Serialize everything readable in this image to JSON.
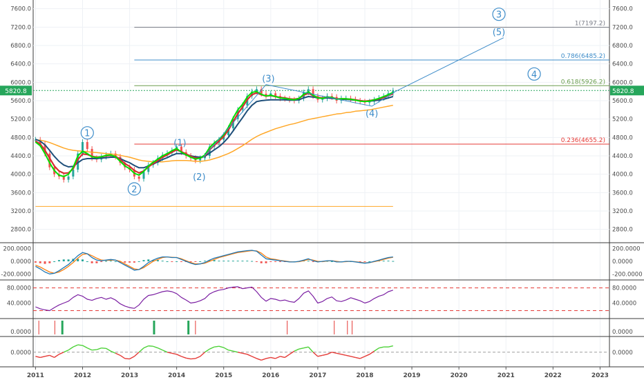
{
  "chart_data": {
    "type": "line",
    "instrument_price_label": "5820.8",
    "colors": {
      "up": "#26a69a",
      "down": "#ef5350",
      "ema_fast": "#00e000",
      "ema_mid": "#d32f2f",
      "ema_slow": "#1e4f7a",
      "ema_long": "#ffa726",
      "wave": "#3d8cc9",
      "price_badge": "#26a65b"
    },
    "x_axis": {
      "start": 2010.95,
      "end": 2023.2,
      "ticks": [
        "2011",
        "2012",
        "2013",
        "2014",
        "2015",
        "2016",
        "2017",
        "2018",
        "2019",
        "2020",
        "2021",
        "2022",
        "2023"
      ]
    },
    "main_panel": {
      "ylim": [
        2600,
        7700
      ],
      "y_ticks": [
        "7600.0",
        "7200.0",
        "6800.0",
        "6400.0",
        "6000.0",
        "5600.0",
        "5200.0",
        "4800.0",
        "4400.0",
        "4000.0",
        "3600.0",
        "3200.0",
        "2800.0"
      ],
      "price": {
        "x": [
          2011.0,
          2011.1,
          2011.2,
          2011.3,
          2011.4,
          2011.5,
          2011.6,
          2011.7,
          2011.8,
          2011.9,
          2012.0,
          2012.1,
          2012.2,
          2012.3,
          2012.4,
          2012.5,
          2012.6,
          2012.7,
          2012.8,
          2012.9,
          2013.0,
          2013.1,
          2013.2,
          2013.3,
          2013.4,
          2013.5,
          2013.6,
          2013.7,
          2013.8,
          2013.9,
          2014.0,
          2014.1,
          2014.2,
          2014.3,
          2014.4,
          2014.5,
          2014.6,
          2014.7,
          2014.8,
          2014.9,
          2015.0,
          2015.1,
          2015.2,
          2015.3,
          2015.4,
          2015.5,
          2015.6,
          2015.7,
          2015.8,
          2015.9,
          2016.0,
          2016.1,
          2016.2,
          2016.3,
          2016.4,
          2016.5,
          2016.6,
          2016.7,
          2016.8,
          2016.9,
          2017.0,
          2017.1,
          2017.2,
          2017.3,
          2017.4,
          2017.5,
          2017.6,
          2017.7,
          2017.8,
          2017.9,
          2018.0,
          2018.1,
          2018.2,
          2018.3,
          2018.4,
          2018.5,
          2018.6
        ],
        "y": [
          4750,
          4650,
          4450,
          4150,
          4000,
          3950,
          3880,
          3950,
          4100,
          4450,
          4700,
          4550,
          4350,
          4320,
          4380,
          4420,
          4450,
          4380,
          4250,
          4150,
          4100,
          3950,
          3900,
          4050,
          4200,
          4250,
          4350,
          4420,
          4460,
          4520,
          4600,
          4480,
          4400,
          4350,
          4300,
          4350,
          4400,
          4600,
          4680,
          4750,
          4850,
          5000,
          5200,
          5400,
          5500,
          5700,
          5800,
          5850,
          5750,
          5700,
          5760,
          5700,
          5650,
          5640,
          5620,
          5600,
          5650,
          5780,
          5850,
          5700,
          5620,
          5650,
          5700,
          5680,
          5600,
          5650,
          5650,
          5630,
          5600,
          5580,
          5560,
          5580,
          5620,
          5660,
          5700,
          5760,
          5820.8
        ]
      },
      "ema_fast": [
        4700,
        4620,
        4450,
        4250,
        4080,
        3980,
        3950,
        4000,
        4150,
        4400,
        4500,
        4450,
        4380,
        4360,
        4380,
        4410,
        4420,
        4380,
        4280,
        4180,
        4120,
        4020,
        3980,
        4060,
        4180,
        4260,
        4330,
        4400,
        4450,
        4510,
        4560,
        4480,
        4420,
        4370,
        4330,
        4350,
        4420,
        4580,
        4680,
        4760,
        4860,
        5020,
        5220,
        5400,
        5520,
        5680,
        5780,
        5800,
        5740,
        5700,
        5720,
        5690,
        5660,
        5650,
        5630,
        5620,
        5650,
        5740,
        5790,
        5720,
        5660,
        5650,
        5680,
        5670,
        5630,
        5640,
        5640,
        5630,
        5610,
        5590,
        5580,
        5590,
        5620,
        5650,
        5690,
        5730,
        5780
      ],
      "ema_mid": [
        4720,
        4660,
        4520,
        4350,
        4180,
        4070,
        4020,
        4030,
        4120,
        4320,
        4440,
        4430,
        4390,
        4370,
        4380,
        4400,
        4410,
        4390,
        4320,
        4230,
        4170,
        4080,
        4030,
        4070,
        4160,
        4230,
        4300,
        4370,
        4420,
        4480,
        4530,
        4490,
        4440,
        4390,
        4350,
        4350,
        4400,
        4530,
        4630,
        4720,
        4820,
        4960,
        5140,
        5320,
        5460,
        5620,
        5730,
        5770,
        5730,
        5700,
        5710,
        5690,
        5670,
        5660,
        5640,
        5630,
        5650,
        5720,
        5760,
        5710,
        5670,
        5660,
        5680,
        5670,
        5640,
        5640,
        5640,
        5630,
        5620,
        5600,
        5590,
        5600,
        5620,
        5640,
        5670,
        5710,
        5750
      ],
      "ema_slow": [
        4760,
        4720,
        4640,
        4520,
        4390,
        4280,
        4200,
        4160,
        4170,
        4250,
        4320,
        4340,
        4340,
        4340,
        4350,
        4360,
        4370,
        4370,
        4340,
        4290,
        4250,
        4190,
        4140,
        4140,
        4180,
        4220,
        4270,
        4320,
        4360,
        4410,
        4450,
        4450,
        4430,
        4400,
        4380,
        4370,
        4390,
        4460,
        4530,
        4600,
        4690,
        4800,
        4940,
        5090,
        5230,
        5380,
        5500,
        5580,
        5600,
        5610,
        5620,
        5620,
        5620,
        5620,
        5610,
        5610,
        5620,
        5660,
        5690,
        5680,
        5660,
        5650,
        5660,
        5650,
        5640,
        5630,
        5630,
        5620,
        5610,
        5600,
        5590,
        5590,
        5600,
        5610,
        5630,
        5660,
        5690
      ],
      "ema_long": [
        4750,
        4740,
        4720,
        4690,
        4650,
        4610,
        4570,
        4540,
        4520,
        4510,
        4500,
        4490,
        4480,
        4470,
        4460,
        4450,
        4440,
        4430,
        4410,
        4390,
        4370,
        4340,
        4310,
        4290,
        4280,
        4270,
        4270,
        4270,
        4280,
        4290,
        4300,
        4300,
        4300,
        4290,
        4280,
        4280,
        4290,
        4310,
        4340,
        4370,
        4410,
        4450,
        4500,
        4560,
        4620,
        4690,
        4760,
        4820,
        4870,
        4910,
        4950,
        4990,
        5020,
        5050,
        5080,
        5100,
        5130,
        5160,
        5190,
        5210,
        5230,
        5250,
        5270,
        5290,
        5310,
        5320,
        5340,
        5350,
        5370,
        5380,
        5390,
        5400,
        5420,
        5440,
        5460,
        5480,
        5500
      ],
      "hlines": [
        {
          "y": 7197.2,
          "x0": 2013.1,
          "x1": 2023.2,
          "color": "#787b86",
          "label": "1(7197.2)"
        },
        {
          "y": 6485.2,
          "x0": 2013.1,
          "x1": 2023.2,
          "color": "#3d8cc9",
          "label": "0.786(6485.2)"
        },
        {
          "y": 5926.2,
          "x0": 2013.1,
          "x1": 2023.2,
          "color": "#6b9e4f",
          "label": "0.618(5926.2)"
        },
        {
          "y": 4655.2,
          "x0": 2013.1,
          "x1": 2023.2,
          "color": "#e53935",
          "label": "0.236(4655.2)"
        },
        {
          "y": 3300,
          "x0": 2011.0,
          "x1": 2018.6,
          "color": "#ffa726",
          "label": ""
        }
      ],
      "wave_path": [
        [
          2014.55,
          4350
        ],
        [
          2015.9,
          5950
        ],
        [
          2017.0,
          5720
        ],
        [
          2018.15,
          5480
        ],
        [
          2018.65,
          5800
        ],
        [
          2020.95,
          6970
        ]
      ],
      "wave_labels": [
        {
          "text": "1",
          "x": 2012.1,
          "y": 4900,
          "circled": true
        },
        {
          "text": "2",
          "x": 2013.1,
          "y": 3680,
          "circled": true
        },
        {
          "text": "(1)",
          "x": 2014.07,
          "y": 4690,
          "circled": false
        },
        {
          "text": "(2)",
          "x": 2014.48,
          "y": 3950,
          "circled": false
        },
        {
          "text": "(3)",
          "x": 2015.95,
          "y": 6090,
          "circled": false
        },
        {
          "text": "(4)",
          "x": 2018.15,
          "y": 5330,
          "circled": false
        },
        {
          "text": "3",
          "x": 2020.85,
          "y": 7480,
          "circled": true
        },
        {
          "text": "(5)",
          "x": 2020.85,
          "y": 7100,
          "circled": false
        },
        {
          "text": "4",
          "x": 2021.6,
          "y": 6180,
          "circled": true
        }
      ]
    },
    "macd_panel": {
      "ylim": [
        -230,
        230
      ],
      "y_ticks": [
        "200.0000",
        "0.0000",
        "-200.0000"
      ],
      "macd": [
        -80,
        -120,
        -170,
        -200,
        -190,
        -150,
        -100,
        -50,
        20,
        90,
        140,
        120,
        60,
        20,
        10,
        20,
        30,
        20,
        -20,
        -60,
        -100,
        -140,
        -130,
        -80,
        -20,
        20,
        50,
        70,
        70,
        60,
        60,
        30,
        0,
        -30,
        -50,
        -40,
        -20,
        20,
        50,
        70,
        90,
        110,
        130,
        150,
        160,
        170,
        175,
        160,
        100,
        40,
        30,
        20,
        10,
        0,
        -10,
        -10,
        0,
        20,
        40,
        10,
        -10,
        0,
        10,
        10,
        -10,
        -10,
        0,
        0,
        -10,
        -20,
        -30,
        -20,
        0,
        20,
        40,
        60,
        70
      ],
      "signal": [
        -60,
        -90,
        -130,
        -170,
        -190,
        -170,
        -130,
        -80,
        -20,
        50,
        110,
        120,
        90,
        50,
        20,
        15,
        20,
        20,
        0,
        -40,
        -80,
        -120,
        -130,
        -100,
        -50,
        0,
        30,
        60,
        70,
        65,
        60,
        40,
        10,
        -20,
        -40,
        -40,
        -30,
        0,
        30,
        60,
        80,
        100,
        120,
        140,
        150,
        160,
        170,
        165,
        130,
        70,
        40,
        30,
        15,
        5,
        -5,
        -10,
        -5,
        10,
        30,
        20,
        0,
        -5,
        5,
        10,
        0,
        -10,
        -5,
        0,
        -5,
        -15,
        -25,
        -20,
        -5,
        10,
        30,
        50,
        65
      ]
    },
    "rsi_panel": {
      "ylim": [
        10,
        90
      ],
      "y_ticks": [
        "80.0000",
        "40.0000"
      ],
      "bands": [
        80,
        20
      ],
      "values": [
        30,
        25,
        22,
        20,
        28,
        35,
        40,
        45,
        55,
        62,
        58,
        50,
        47,
        52,
        55,
        50,
        54,
        48,
        38,
        32,
        28,
        26,
        35,
        50,
        60,
        62,
        66,
        70,
        72,
        70,
        65,
        55,
        48,
        40,
        42,
        46,
        52,
        64,
        70,
        74,
        76,
        80,
        82,
        83,
        78,
        80,
        82,
        70,
        55,
        45,
        52,
        50,
        46,
        48,
        44,
        42,
        52,
        66,
        72,
        58,
        40,
        44,
        52,
        56,
        46,
        44,
        48,
        54,
        50,
        46,
        40,
        44,
        52,
        58,
        62,
        70,
        74
      ]
    },
    "signal_panel": {
      "red_marks": [
        2011.07,
        2011.41,
        2014.4,
        2016.35,
        2017.35,
        2017.63,
        2017.73
      ],
      "green_marks": [
        2011.57,
        2013.52,
        2014.25
      ]
    },
    "osc_panel": {
      "ylim": [
        -0.5,
        0.55
      ],
      "y_ticks": [
        "0.0000"
      ],
      "values": [
        -0.2,
        -0.25,
        -0.2,
        -0.15,
        -0.25,
        -0.1,
        0.0,
        0.1,
        0.25,
        0.35,
        0.32,
        0.2,
        0.1,
        0.12,
        0.2,
        0.18,
        0.05,
        -0.05,
        -0.15,
        -0.3,
        -0.32,
        -0.2,
        0.0,
        0.2,
        0.3,
        0.28,
        0.2,
        0.1,
        0.0,
        -0.05,
        -0.1,
        -0.2,
        -0.28,
        -0.32,
        -0.3,
        -0.2,
        0.0,
        0.15,
        0.25,
        0.28,
        0.22,
        0.1,
        0.05,
        0.0,
        -0.05,
        -0.1,
        -0.2,
        -0.3,
        -0.38,
        -0.3,
        -0.25,
        -0.3,
        -0.2,
        -0.25,
        -0.1,
        0.05,
        0.15,
        0.2,
        0.25,
        0.0,
        -0.2,
        -0.15,
        -0.1,
        0.0,
        -0.05,
        -0.1,
        -0.15,
        -0.2,
        -0.25,
        -0.3,
        -0.2,
        -0.1,
        0.05,
        0.2,
        0.25,
        0.25,
        0.3
      ]
    }
  }
}
